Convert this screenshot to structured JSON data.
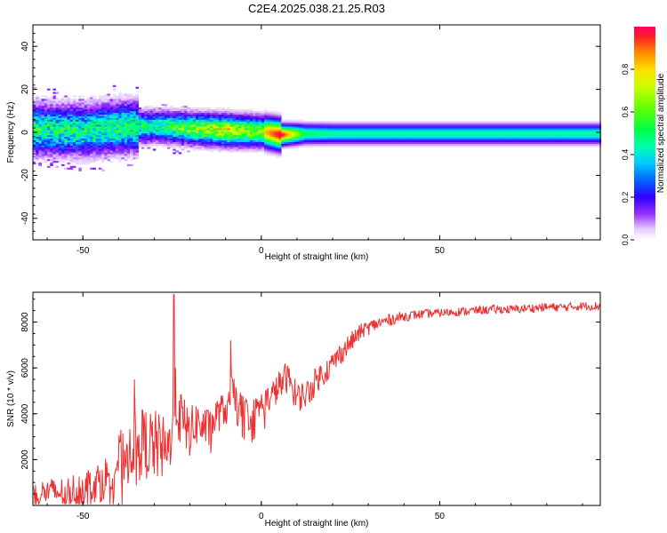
{
  "title": "C2E4.2025.038.21.25.R03",
  "colors": {
    "snr_line": "#ee3030",
    "axis": "#000000",
    "background": "#ffffff"
  },
  "colorbar": {
    "label": "Normalized spectral amplitude",
    "ticks": [
      "0.0",
      "0.2",
      "0.4",
      "0.6",
      "0.8"
    ],
    "range": [
      0,
      1
    ],
    "colormap": "rainbow (white-violet-blue-cyan-green-yellow-red)"
  },
  "chart_data": [
    {
      "type": "heatmap",
      "name": "spectrogram",
      "xlabel": "Height of straight line (km)",
      "ylabel": "Frequency (Hz)",
      "xlim": [
        -64,
        95
      ],
      "ylim": [
        -50,
        50
      ],
      "xticks": [
        "-50",
        "0",
        "50"
      ],
      "yticks": [
        "-40",
        "-20",
        "0",
        "20",
        "40"
      ],
      "grid": false,
      "ridge": {
        "x": [
          -64,
          -50,
          -40,
          -30,
          -20,
          -10,
          0,
          5,
          12,
          20,
          40,
          60,
          80,
          95
        ],
        "center_hz": [
          1.0,
          0.5,
          2.0,
          2.5,
          1.5,
          0.5,
          0.0,
          -1.5,
          -1.0,
          -1.0,
          -1.0,
          -1.0,
          -1.0,
          -1.0
        ],
        "peak_amplitude": [
          0.5,
          0.5,
          0.55,
          0.55,
          0.75,
          0.95,
          0.8,
          1.0,
          0.5,
          0.45,
          0.45,
          0.45,
          0.45,
          0.45
        ]
      }
    },
    {
      "type": "line",
      "name": "snr",
      "xlabel": "Height of straight line (km)",
      "ylabel": "SNR (10 * v/v)",
      "xlim": [
        -64,
        95
      ],
      "ylim": [
        0,
        9300
      ],
      "xticks": [
        "-50",
        "0",
        "50"
      ],
      "yticks": [
        "2000",
        "4000",
        "6000",
        "8000"
      ],
      "grid": false,
      "x": [
        -64,
        -60,
        -55,
        -50,
        -45,
        -42,
        -40,
        -38,
        -36,
        -34,
        -32,
        -30,
        -28,
        -26,
        -24.5,
        -22,
        -20,
        -18,
        -15,
        -12,
        -9,
        -8.5,
        -6,
        -3,
        0,
        3,
        5,
        7,
        8,
        10,
        13,
        16,
        19,
        22,
        25,
        28,
        32,
        36,
        40,
        45,
        50,
        55,
        60,
        65,
        70,
        75,
        80,
        85,
        90,
        95
      ],
      "y": [
        500,
        600,
        550,
        800,
        1100,
        1400,
        2000,
        2300,
        2700,
        2800,
        2700,
        2600,
        2500,
        2200,
        4800,
        3500,
        3200,
        3600,
        3300,
        4000,
        4300,
        5100,
        4300,
        3900,
        4400,
        4800,
        5200,
        5600,
        5400,
        4700,
        4900,
        5600,
        6000,
        6600,
        7100,
        7600,
        7900,
        8100,
        8250,
        8350,
        8400,
        8450,
        8500,
        8550,
        8550,
        8600,
        8650,
        8650,
        8700,
        8700
      ],
      "noise_envelope": [
        500,
        600,
        700,
        800,
        900,
        1000,
        1200,
        1300,
        1400,
        1500,
        1600,
        1600,
        1500,
        1500,
        1500,
        1300,
        1100,
        1000,
        900,
        800,
        700,
        700,
        700,
        650,
        600,
        650,
        700,
        700,
        700,
        650,
        650,
        600,
        550,
        500,
        450,
        350,
        300,
        260,
        230,
        200,
        190,
        190,
        190,
        190,
        190,
        190,
        190,
        190,
        190,
        190
      ],
      "spikes": [
        {
          "x": -35.5,
          "y": 5500
        },
        {
          "x": -24.5,
          "y": 9200
        },
        {
          "x": -8.5,
          "y": 7200
        }
      ]
    }
  ]
}
